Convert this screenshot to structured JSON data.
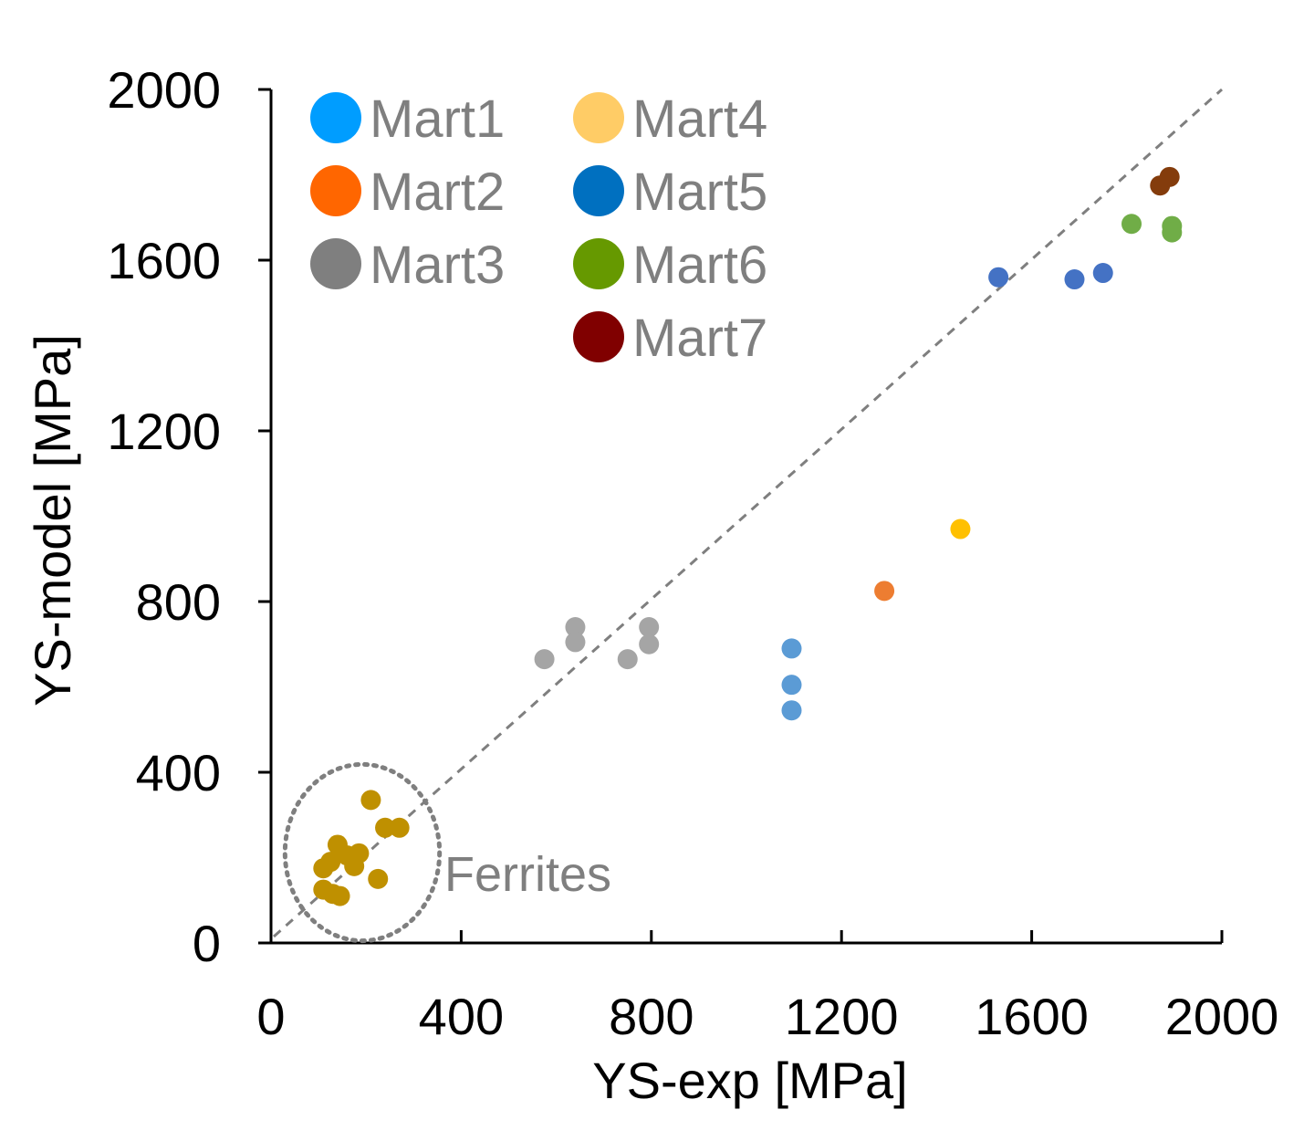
{
  "chart_data": {
    "type": "scatter",
    "title": "",
    "xlabel": "YS-exp [MPa]",
    "ylabel": "YS-model [MPa]",
    "xlim": [
      0,
      2000
    ],
    "ylim": [
      0,
      2000
    ],
    "xticks": [
      0,
      400,
      800,
      1200,
      1600,
      2000
    ],
    "yticks": [
      0,
      400,
      800,
      1200,
      1600,
      2000
    ],
    "grid": false,
    "reference_line": {
      "name": "y = x",
      "style": "dashed",
      "color": "#7f7f7f"
    },
    "legend": {
      "placement": "top-left",
      "entries": [
        {
          "label": "Mart1",
          "color": "#009dff"
        },
        {
          "label": "Mart2",
          "color": "#ff6600"
        },
        {
          "label": "Mart3",
          "color": "#7f7f7f"
        },
        {
          "label": "Mart4",
          "color": "#ffcc66"
        },
        {
          "label": "Mart5",
          "color": "#0070c0"
        },
        {
          "label": "Mart6",
          "color": "#669900"
        },
        {
          "label": "Mart7",
          "color": "#800000"
        }
      ]
    },
    "series": [
      {
        "name": "Ferrites",
        "color": "#bf9000",
        "points": [
          [
            110,
            175
          ],
          [
            125,
            190
          ],
          [
            140,
            230
          ],
          [
            160,
            205
          ],
          [
            175,
            180
          ],
          [
            185,
            210
          ],
          [
            110,
            125
          ],
          [
            130,
            115
          ],
          [
            145,
            110
          ],
          [
            210,
            335
          ],
          [
            225,
            150
          ],
          [
            240,
            270
          ],
          [
            270,
            270
          ]
        ]
      },
      {
        "name": "Mart3",
        "color": "#a5a5a5",
        "points": [
          [
            575,
            665
          ],
          [
            640,
            740
          ],
          [
            640,
            705
          ],
          [
            750,
            665
          ],
          [
            795,
            740
          ],
          [
            795,
            700
          ]
        ]
      },
      {
        "name": "Mart1",
        "color": "#5b9bd5",
        "points": [
          [
            1095,
            690
          ],
          [
            1095,
            605
          ],
          [
            1095,
            545
          ]
        ]
      },
      {
        "name": "Mart2",
        "color": "#ed7d31",
        "points": [
          [
            1290,
            825
          ]
        ]
      },
      {
        "name": "Mart4",
        "color": "#ffc000",
        "points": [
          [
            1450,
            970
          ]
        ]
      },
      {
        "name": "Mart5",
        "color": "#4472c4",
        "points": [
          [
            1530,
            1560
          ],
          [
            1690,
            1555
          ],
          [
            1750,
            1570
          ]
        ]
      },
      {
        "name": "Mart6",
        "color": "#70ad47",
        "points": [
          [
            1810,
            1685
          ],
          [
            1895,
            1680
          ],
          [
            1895,
            1665
          ]
        ]
      },
      {
        "name": "Mart7",
        "color": "#843c0c",
        "points": [
          [
            1870,
            1775
          ],
          [
            1890,
            1795
          ]
        ]
      }
    ],
    "annotations": [
      {
        "text": "Ferrites",
        "target": "Ferrites",
        "shape": "dotted-ellipse",
        "color": "#7f7f7f"
      }
    ]
  }
}
